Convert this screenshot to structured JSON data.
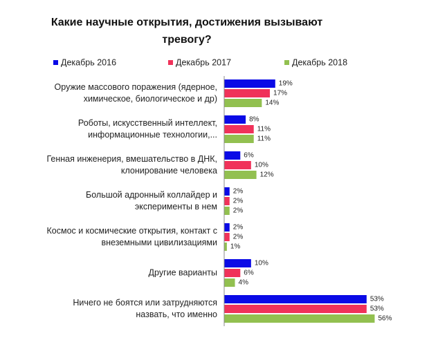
{
  "chart_data": {
    "type": "hbar",
    "title": "Какие научные открытия, достижения вызывают\nтревогу?",
    "categories": [
      "Оружие массового поражения (ядерное,\nхимическое, биологическое и др)",
      "Роботы, искусственный интеллект,\nинформационные технологии,...",
      "Генная инженерия, вмешательство в ДНК,\nклонирование человека",
      "Большой адронный коллайдер и\nэксперименты в нем",
      "Космос и космические открытия, контакт с\nвнеземными цивилизациями",
      "Другие варианты",
      "Ничего не боятся или затрудняются\nназвать, что именно"
    ],
    "series": [
      {
        "name": "Декабрь 2016",
        "color": "#0a0ae6",
        "values": [
          19,
          8,
          6,
          2,
          2,
          10,
          53
        ],
        "value_labels": [
          "19%",
          "8%",
          "6%",
          "2%",
          "2%",
          "10%",
          "53%"
        ]
      },
      {
        "name": "Декабрь 2017",
        "color": "#f0325a",
        "values": [
          17,
          11,
          10,
          2,
          2,
          6,
          53
        ],
        "value_labels": [
          "17%",
          "11%",
          "10%",
          "2%",
          "2%",
          "6%",
          "53%"
        ]
      },
      {
        "name": "Декабрь 2018",
        "color": "#92c050",
        "values": [
          14,
          11,
          12,
          2,
          1,
          4,
          56
        ],
        "value_labels": [
          "14%",
          "11%",
          "12%",
          "2%",
          "1%",
          "4%",
          "56%"
        ]
      }
    ],
    "xlim": [
      0,
      60
    ],
    "legend": "top"
  }
}
